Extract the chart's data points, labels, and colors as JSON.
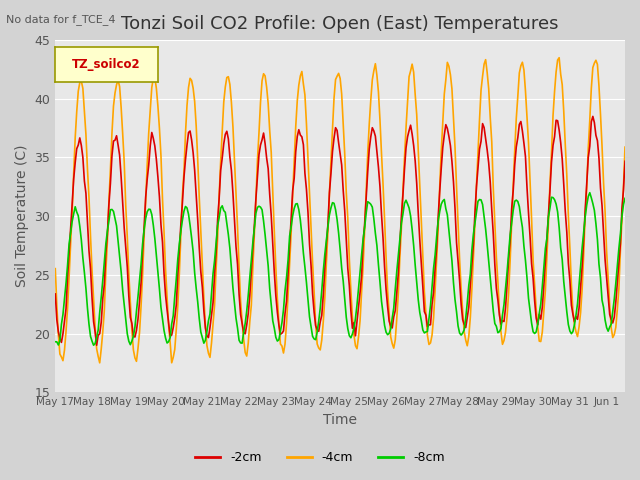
{
  "title": "Tonzi Soil CO2 Profile: Open (East) Temperatures",
  "subtitle": "No data for f_TCE_4",
  "xlabel": "Time",
  "ylabel": "Soil Temperature (C)",
  "ylim": [
    15,
    45
  ],
  "background_color": "#d3d3d3",
  "plot_bg_color": "#e8e8e8",
  "legend_label": "TZ_soilco2",
  "series_labels": [
    "-2cm",
    "-4cm",
    "-8cm"
  ],
  "series_colors": [
    "#dd0000",
    "#ffa500",
    "#00cc00"
  ],
  "x_tick_labels": [
    "May 17",
    "May 18",
    "May 19",
    "May 20",
    "May 21",
    "May 22",
    "May 23",
    "May 24",
    "May 25",
    "May 26",
    "May 27",
    "May 28",
    "May 29",
    "May 30",
    "May 31",
    "Jun 1"
  ],
  "title_fontsize": 13,
  "axis_label_fontsize": 10,
  "tick_fontsize": 9
}
